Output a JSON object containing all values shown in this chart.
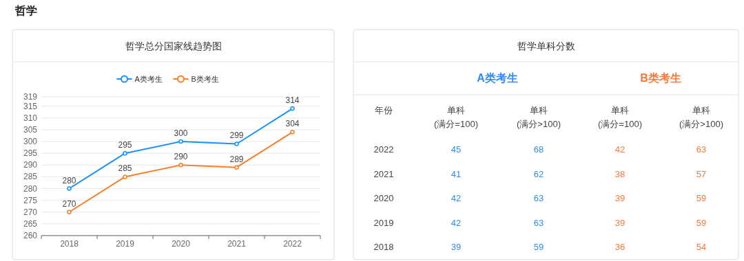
{
  "chart_data": [
    {
      "type": "line",
      "title": "哲学总分国家线趋势图",
      "annotations": [
        "哲学"
      ],
      "categories": [
        "2018",
        "2019",
        "2020",
        "2021",
        "2022"
      ],
      "series": [
        {
          "name": "A类考生",
          "color": "#1890ff",
          "values": [
            280,
            295,
            300,
            299,
            314
          ]
        },
        {
          "name": "B类考生",
          "color": "#fa7d2a",
          "values": [
            270,
            285,
            290,
            289,
            304
          ]
        }
      ],
      "ylim": [
        260,
        319
      ],
      "yticks": [
        260,
        265,
        270,
        275,
        280,
        285,
        290,
        295,
        300,
        305,
        310,
        315,
        319
      ],
      "data_labels": true,
      "legend": "top",
      "marker": "circle",
      "grid": "y"
    },
    {
      "type": "heatmap",
      "title": "哲学单科分数",
      "annotations": [
        "年份",
        "A类考生",
        "B类考生"
      ],
      "categories": [
        "单科\n(满分=100)",
        "单科\n(满分>100)",
        "单科\n(满分=100)",
        "单科\n(满分>100)"
      ],
      "colors": [
        "#2f8cf0",
        "#2f8cf0",
        "#f5793a",
        "#f5793a"
      ],
      "y_categories": [
        "2022",
        "2021",
        "2020",
        "2019",
        "2018"
      ],
      "data_labels": true,
      "cells": [
        [
          45,
          68,
          42,
          63
        ],
        [
          41,
          62,
          38,
          57
        ],
        [
          42,
          63,
          39,
          59
        ],
        [
          42,
          63,
          39,
          59
        ],
        [
          39,
          59,
          36,
          54
        ]
      ]
    }
  ]
}
